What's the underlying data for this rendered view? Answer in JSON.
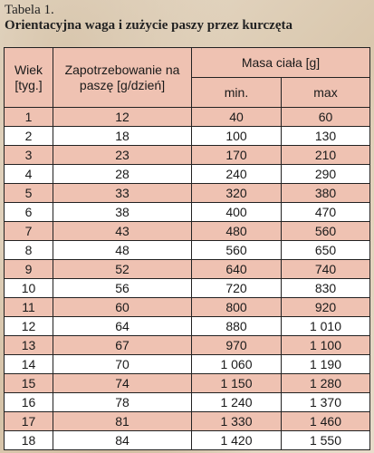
{
  "caption": {
    "label": "Tabela 1.",
    "title": "Orientacyjna waga i zużycie paszy przez kurczęta"
  },
  "header": {
    "age": "Wiek [tyg.]",
    "feed": "Zapotrzebowanie na paszę [g/dzień]",
    "mass": "Masa ciała [g]",
    "min": "min.",
    "max": "max"
  },
  "rows": [
    {
      "week": "1",
      "feed": "12",
      "min": "40",
      "max": "60"
    },
    {
      "week": "2",
      "feed": "18",
      "min": "100",
      "max": "130"
    },
    {
      "week": "3",
      "feed": "23",
      "min": "170",
      "max": "210"
    },
    {
      "week": "4",
      "feed": "28",
      "min": "240",
      "max": "290"
    },
    {
      "week": "5",
      "feed": "33",
      "min": "320",
      "max": "380"
    },
    {
      "week": "6",
      "feed": "38",
      "min": "400",
      "max": "470"
    },
    {
      "week": "7",
      "feed": "43",
      "min": "480",
      "max": "560"
    },
    {
      "week": "8",
      "feed": "48",
      "min": "560",
      "max": "650"
    },
    {
      "week": "9",
      "feed": "52",
      "min": "640",
      "max": "740"
    },
    {
      "week": "10",
      "feed": "56",
      "min": "720",
      "max": "830"
    },
    {
      "week": "11",
      "feed": "60",
      "min": "800",
      "max": "920"
    },
    {
      "week": "12",
      "feed": "64",
      "min": "880",
      "max": "1 010"
    },
    {
      "week": "13",
      "feed": "67",
      "min": "970",
      "max": "1 100"
    },
    {
      "week": "14",
      "feed": "70",
      "min": "1 060",
      "max": "1 190"
    },
    {
      "week": "15",
      "feed": "74",
      "min": "1 150",
      "max": "1 280"
    },
    {
      "week": "16",
      "feed": "78",
      "min": "1 240",
      "max": "1 370"
    },
    {
      "week": "17",
      "feed": "81",
      "min": "1 330",
      "max": "1 460"
    },
    {
      "week": "18",
      "feed": "84",
      "min": "1 420",
      "max": "1 550"
    }
  ],
  "colors": {
    "stripe": "#efc2b2",
    "plain": "#ffffff",
    "border": "#222222"
  }
}
